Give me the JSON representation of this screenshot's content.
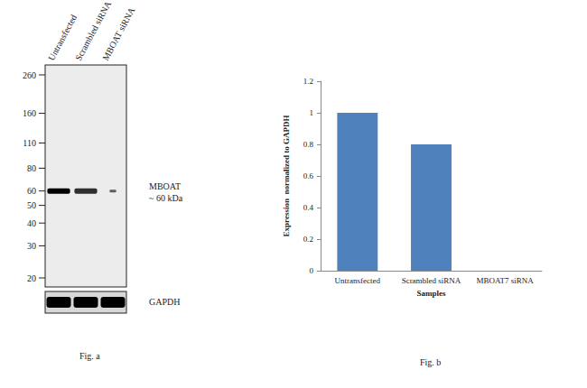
{
  "blot": {
    "caption": "Fig. a",
    "lanes": [
      "Untransfected",
      "Scrambled siRNA",
      "MBOAT siRNA"
    ],
    "markers": [
      260,
      160,
      110,
      80,
      60,
      50,
      40,
      30,
      20
    ],
    "target": {
      "label": "MBOAT",
      "size_label": "~ 60 kDa",
      "kda": 60
    },
    "loading_control": "GAPDH"
  },
  "chart_data": {
    "type": "bar",
    "categories": [
      "Untransfected",
      "Scrambled siRNA",
      "MBOAT7 siRNA"
    ],
    "values": [
      1,
      0.8,
      0
    ],
    "color": "#4f81bd",
    "x_label": "Samples",
    "y_label": "Expression  normalized to GAPDH",
    "ylim": [
      0,
      1.2
    ],
    "yticks": [
      0,
      0.2,
      0.4,
      0.6,
      0.8,
      1,
      1.2
    ],
    "grid": false,
    "annotations": [
      "Fig. b"
    ]
  }
}
